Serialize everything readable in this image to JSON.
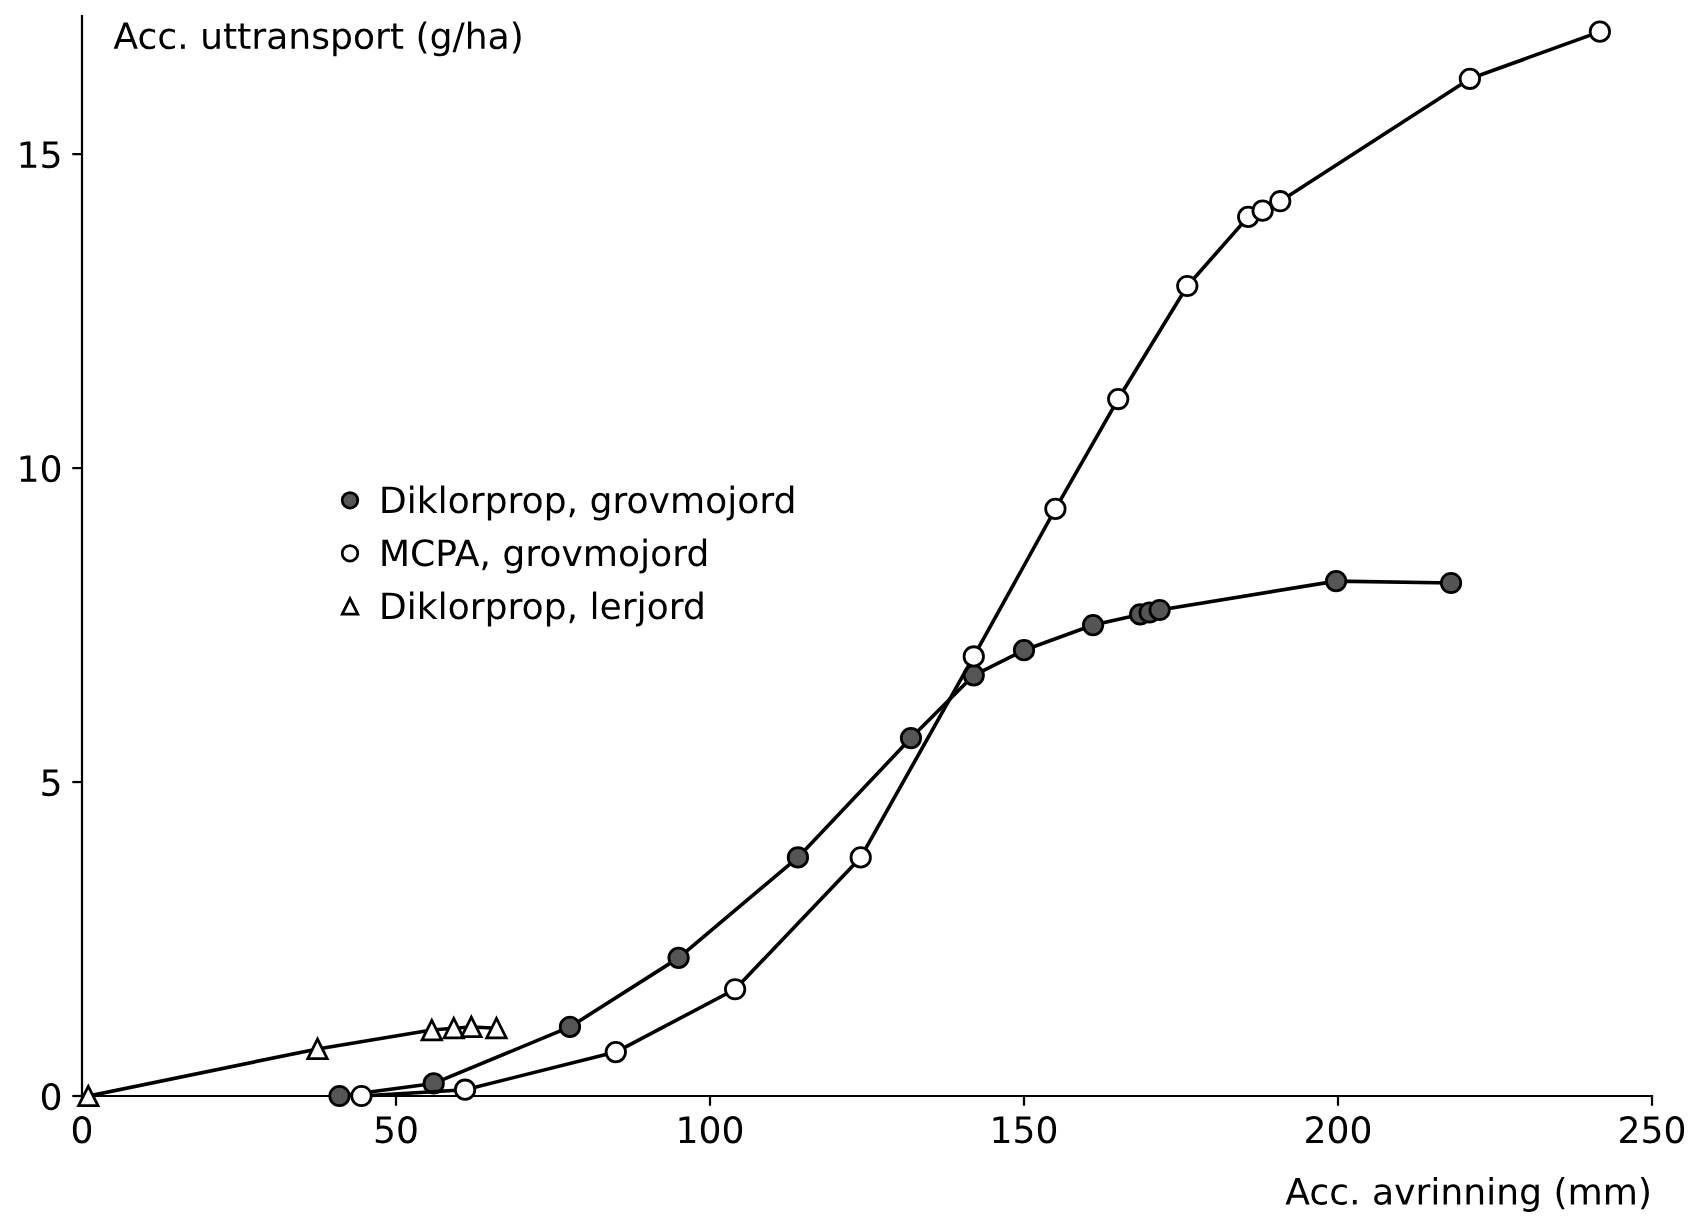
{
  "chart_data": {
    "type": "line",
    "xlabel": "Acc. avrinning (mm)",
    "ylabel": "Acc. uttransport (g/ha)",
    "xlim": [
      0,
      250
    ],
    "xticks": [
      0,
      50,
      100,
      150,
      200,
      250
    ],
    "ylim": [
      0,
      17.2
    ],
    "yticks": [
      0,
      5,
      10,
      15
    ],
    "grid": false,
    "legend": "center left",
    "series": [
      {
        "name": "Diklorprop, grovmojord",
        "color": "#555555",
        "marker": "circle",
        "x": [
          41,
          56,
          77.7,
          95,
          114,
          132,
          142,
          150,
          161,
          168.5,
          170,
          171.6,
          199.7,
          218
        ],
        "values": [
          0,
          0.2,
          1.1,
          2.2,
          3.8,
          5.7,
          6.7,
          7.1,
          7.5,
          7.67,
          7.7,
          7.74,
          8.2,
          8.17
        ]
      },
      {
        "name": "MCPA, grovmojord",
        "color": "#ffffff",
        "marker": "circle",
        "x": [
          44.5,
          61,
          85,
          104,
          124,
          142,
          155,
          165,
          176,
          185.7,
          188,
          190.8,
          221,
          241.7
        ],
        "values": [
          0,
          0.1,
          0.7,
          1.7,
          3.8,
          7.0,
          9.35,
          11.1,
          12.9,
          14.0,
          14.1,
          14.25,
          16.2,
          16.95
        ]
      },
      {
        "name": "Diklorprop, lerjord",
        "color": "#ffffff",
        "marker": "triangle",
        "x": [
          1,
          37.5,
          55.7,
          59.2,
          62,
          66
        ],
        "values": [
          0,
          0.75,
          1.05,
          1.08,
          1.1,
          1.08
        ]
      }
    ]
  }
}
